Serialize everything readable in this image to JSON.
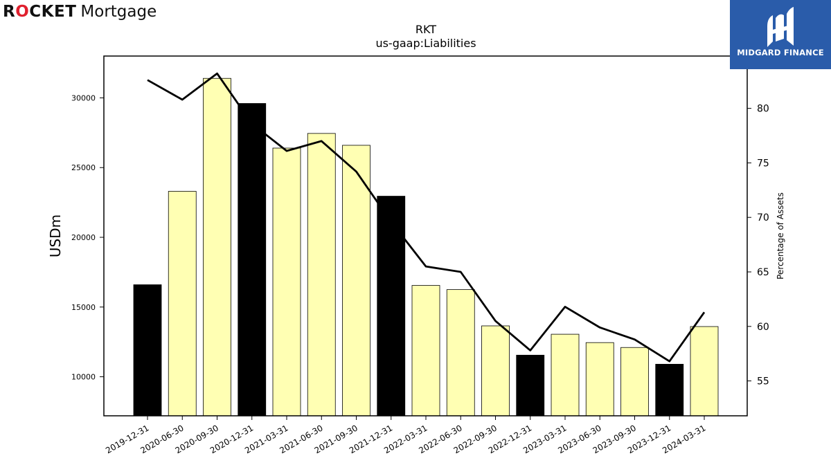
{
  "branding": {
    "left_logo": "ROCKET Mortgage",
    "right_logo_text": "MIDGARD FINANCE",
    "bar_fill_color": "#ffffb3",
    "highlight_fill_color": "#000000",
    "logo_accent_color": "#e0202e",
    "right_logo_bg": "#2a5caa"
  },
  "chart_data": {
    "type": "bar",
    "title": "RKT",
    "subtitle": "us-gaap:Liabilities",
    "ylabel": "USDm",
    "y2label": "Percentage of Assets",
    "ylim": [
      7200,
      33000
    ],
    "y2lim": [
      51.8,
      84.8
    ],
    "yticks": [
      10000,
      15000,
      20000,
      25000,
      30000
    ],
    "y2ticks": [
      55,
      60,
      65,
      70,
      75,
      80
    ],
    "categories": [
      "2019-12-31",
      "2020-06-30",
      "2020-09-30",
      "2020-12-31",
      "2021-03-31",
      "2021-06-30",
      "2021-09-30",
      "2021-12-31",
      "2022-03-31",
      "2022-06-30",
      "2022-09-30",
      "2022-12-31",
      "2023-03-31",
      "2023-06-30",
      "2023-09-30",
      "2023-12-31",
      "2024-03-31"
    ],
    "series": [
      {
        "kind": "bar",
        "values": [
          16600,
          23300,
          31400,
          29600,
          26400,
          27450,
          26600,
          22950,
          16550,
          16250,
          13650,
          11550,
          13050,
          12450,
          12100,
          10900,
          13600
        ],
        "highlight": [
          true,
          false,
          false,
          true,
          false,
          false,
          false,
          true,
          false,
          false,
          false,
          true,
          false,
          false,
          false,
          true,
          false
        ]
      },
      {
        "kind": "line",
        "axis": "right",
        "color": "#000000",
        "values": [
          82.6,
          80.8,
          83.2,
          78.6,
          76.1,
          77.0,
          74.2,
          69.6,
          65.5,
          65.0,
          60.5,
          57.8,
          61.8,
          59.9,
          58.8,
          56.8,
          61.3
        ]
      }
    ]
  }
}
